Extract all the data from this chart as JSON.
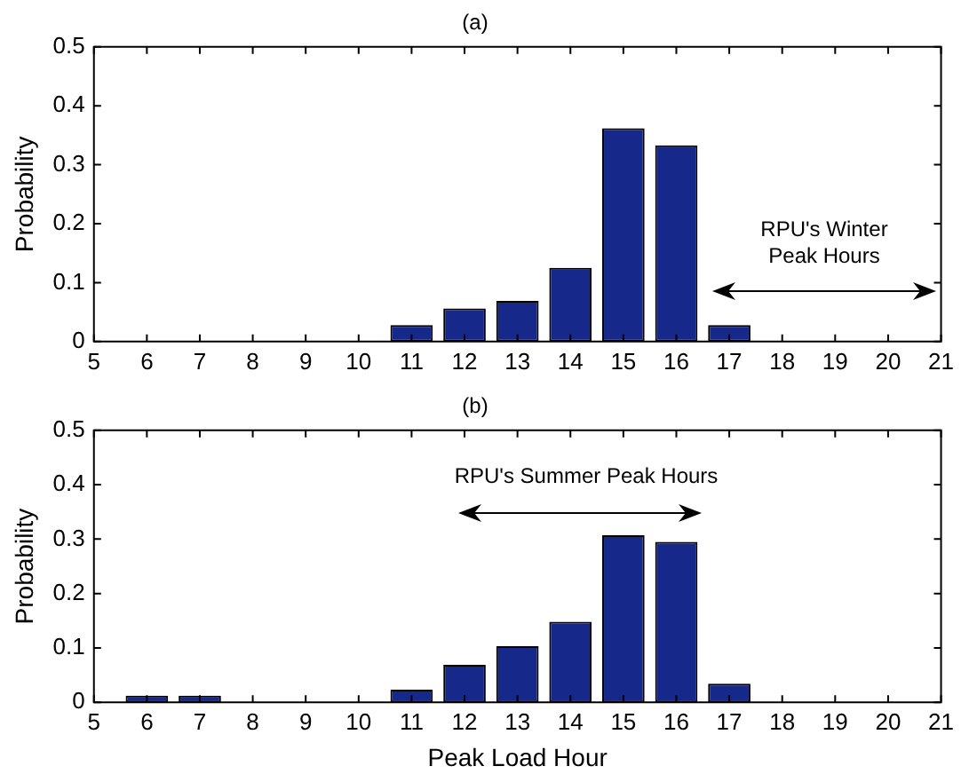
{
  "chart_data": [
    {
      "type": "bar",
      "title": "(a)",
      "ylabel": "Probability",
      "x": [
        6,
        7,
        8,
        9,
        10,
        11,
        12,
        13,
        14,
        15,
        16,
        17,
        18,
        19,
        20
      ],
      "values": [
        0,
        0,
        0,
        0,
        0,
        0.028,
        0.056,
        0.069,
        0.125,
        0.362,
        0.333,
        0.028,
        0,
        0,
        0
      ],
      "color": "#16298a",
      "xlim": [
        5,
        21
      ],
      "xticks": [
        5,
        6,
        7,
        8,
        9,
        10,
        11,
        12,
        13,
        14,
        15,
        16,
        17,
        18,
        19,
        20,
        21
      ],
      "ylim": [
        0,
        0.5
      ],
      "yticks": [
        0,
        0.1,
        0.2,
        0.3,
        0.4,
        0.5
      ],
      "annotations": [
        "RPU's Winter\nPeak Hours"
      ]
    },
    {
      "type": "bar",
      "title": "(b)",
      "xlabel": "Peak Load Hour",
      "ylabel": "Probability",
      "x": [
        6,
        7,
        8,
        9,
        10,
        11,
        12,
        13,
        14,
        15,
        16,
        17,
        18,
        19,
        20
      ],
      "values": [
        0.012,
        0.012,
        0,
        0,
        0,
        0.023,
        0.069,
        0.103,
        0.148,
        0.307,
        0.295,
        0.034,
        0,
        0,
        0
      ],
      "color": "#16298a",
      "xlim": [
        5,
        21
      ],
      "xticks": [
        5,
        6,
        7,
        8,
        9,
        10,
        11,
        12,
        13,
        14,
        15,
        16,
        17,
        18,
        19,
        20,
        21
      ],
      "ylim": [
        0,
        0.5
      ],
      "yticks": [
        0,
        0.1,
        0.2,
        0.3,
        0.4,
        0.5
      ],
      "annotations": [
        "RPU's Summer Peak Hours"
      ]
    }
  ]
}
